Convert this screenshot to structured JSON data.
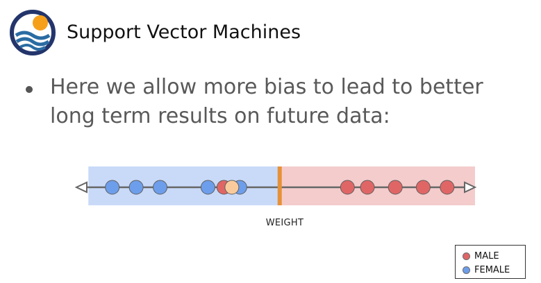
{
  "slide": {
    "title": "Support Vector Machines",
    "bullet": "Here we allow more bias to lead to better long term results on future data:"
  },
  "diagram": {
    "axis_label": "WEIGHT",
    "x_range": [
      0,
      100
    ],
    "threshold": 51,
    "regions": [
      {
        "name": "female-region",
        "from": 3,
        "to": 51,
        "color": "#c9daf8"
      },
      {
        "name": "male-region",
        "from": 51,
        "to": 100,
        "color": "#f4cccc"
      }
    ],
    "points": [
      {
        "x": 9,
        "class": "female"
      },
      {
        "x": 15,
        "class": "female"
      },
      {
        "x": 21,
        "class": "female"
      },
      {
        "x": 33,
        "class": "female"
      },
      {
        "x": 37,
        "class": "male"
      },
      {
        "x": 41,
        "class": "female"
      },
      {
        "x": 39,
        "class": "highlight"
      },
      {
        "x": 68,
        "class": "male"
      },
      {
        "x": 73,
        "class": "male"
      },
      {
        "x": 80,
        "class": "male"
      },
      {
        "x": 87,
        "class": "male"
      },
      {
        "x": 93,
        "class": "male"
      }
    ],
    "colors": {
      "male": "#e06666",
      "female": "#6d9eeb",
      "highlight": "#f9cb9c",
      "threshold": "#e69138",
      "axis": "#666666"
    }
  },
  "legend": {
    "items": [
      {
        "label": "MALE",
        "color": "#e06666"
      },
      {
        "label": "FEMALE",
        "color": "#6d9eeb"
      }
    ]
  },
  "logo": {
    "icon": "wave-sun-logo-icon",
    "sun_color": "#f6a01a",
    "wave_color": "#2a6ca3",
    "ring_color": "#23356b"
  }
}
